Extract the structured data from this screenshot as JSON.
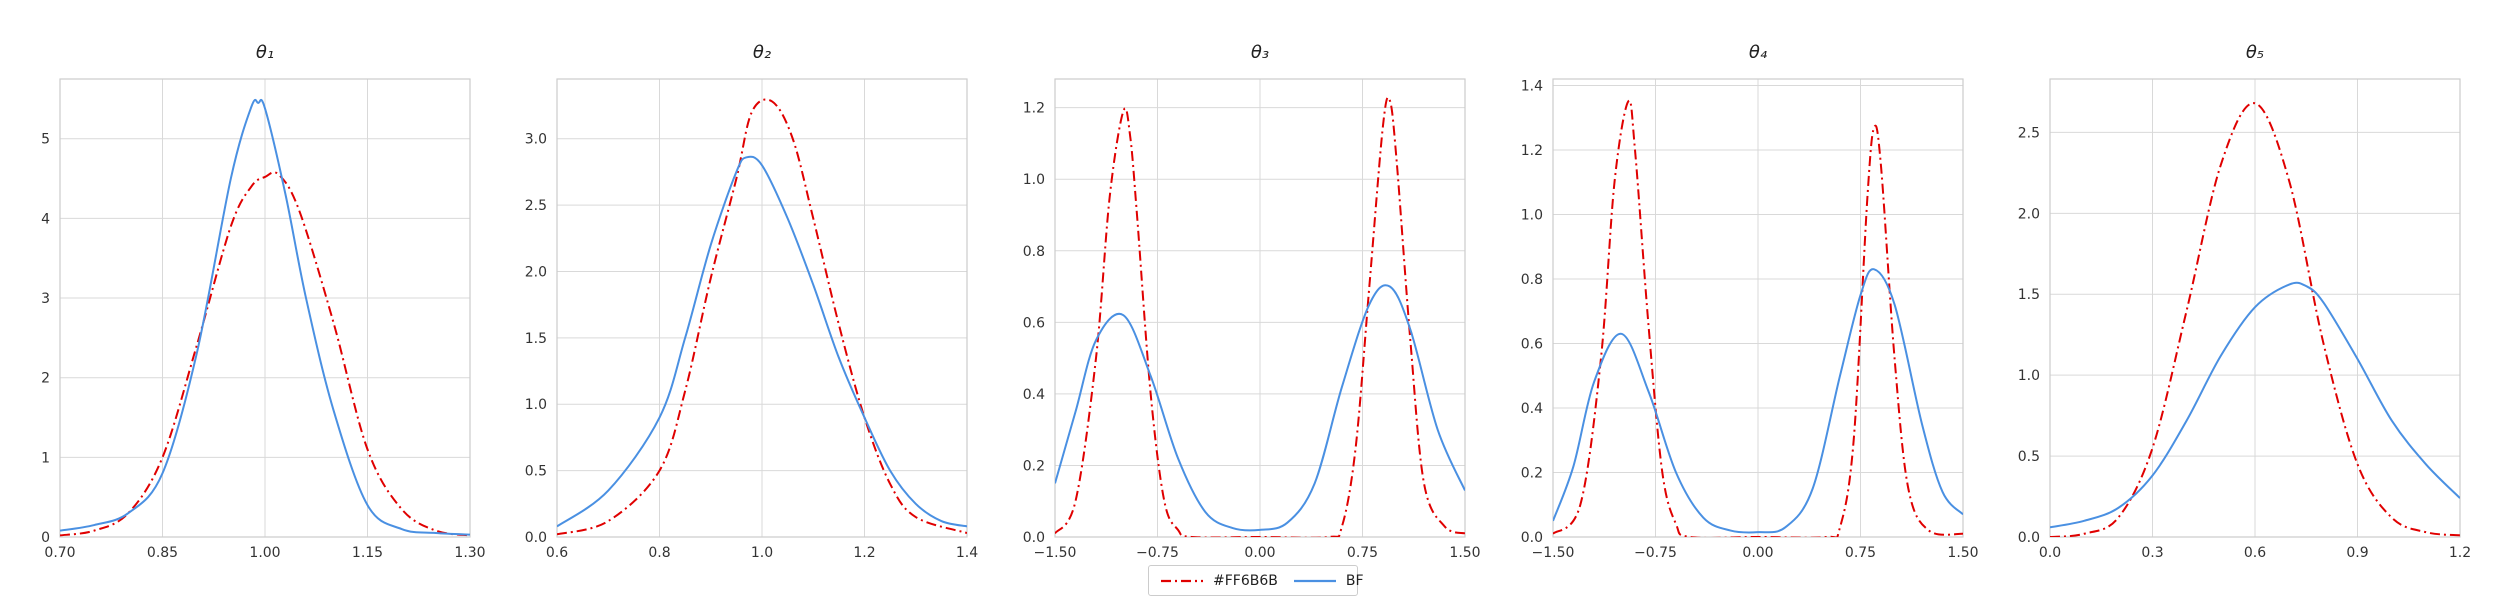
{
  "chart_data": [
    {
      "type": "line",
      "title": "θ₁",
      "xlim": [
        0.7,
        1.3
      ],
      "ylim": [
        0,
        5.75
      ],
      "xticks": [
        0.7,
        0.85,
        1.0,
        1.15,
        1.3
      ],
      "xtick_labels": [
        "0.70",
        "0.85",
        "1.00",
        "1.15",
        "1.30"
      ],
      "yticks": [
        0,
        1,
        2,
        3,
        4,
        5
      ],
      "ytick_labels": [
        "0",
        "1",
        "2",
        "3",
        "4",
        "5"
      ],
      "grid": true,
      "series": [
        {
          "name": "#FF6B6B",
          "style": "dashdot",
          "color": "#e00000",
          "x": [
            0.7,
            0.75,
            0.8,
            0.85,
            0.9,
            0.95,
            0.98,
            1.0,
            1.02,
            1.05,
            1.1,
            1.15,
            1.2,
            1.25,
            1.3
          ],
          "y": [
            0.02,
            0.08,
            0.3,
            1.0,
            2.4,
            3.9,
            4.4,
            4.52,
            4.55,
            4.1,
            2.7,
            1.1,
            0.35,
            0.08,
            0.02
          ]
        },
        {
          "name": "BF",
          "style": "solid",
          "color": "#4a90e2",
          "x": [
            0.7,
            0.75,
            0.8,
            0.85,
            0.9,
            0.95,
            0.98,
            0.99,
            1.0,
            1.03,
            1.06,
            1.1,
            1.15,
            1.2,
            1.25,
            1.3
          ],
          "y": [
            0.08,
            0.15,
            0.3,
            0.8,
            2.3,
            4.5,
            5.4,
            5.45,
            5.38,
            4.3,
            3.0,
            1.6,
            0.4,
            0.1,
            0.05,
            0.03
          ]
        }
      ]
    },
    {
      "type": "line",
      "title": "θ₂",
      "xlim": [
        0.6,
        1.4
      ],
      "ylim": [
        0,
        3.45
      ],
      "xticks": [
        0.6,
        0.8,
        1.0,
        1.2,
        1.4
      ],
      "xtick_labels": [
        "0.6",
        "0.8",
        "1.0",
        "1.2",
        "1.4"
      ],
      "yticks": [
        0,
        0.5,
        1.0,
        1.5,
        2.0,
        2.5,
        3.0
      ],
      "ytick_labels": [
        "0.0",
        "0.5",
        "1.0",
        "1.5",
        "2.0",
        "2.5",
        "3.0"
      ],
      "grid": true,
      "series": [
        {
          "name": "#FF6B6B",
          "style": "dashdot",
          "color": "#e00000",
          "x": [
            0.6,
            0.7,
            0.8,
            0.85,
            0.9,
            0.95,
            0.98,
            1.02,
            1.06,
            1.1,
            1.15,
            1.2,
            1.25,
            1.3,
            1.4
          ],
          "y": [
            0.02,
            0.12,
            0.5,
            1.1,
            1.95,
            2.7,
            3.2,
            3.28,
            3.0,
            2.4,
            1.6,
            0.9,
            0.4,
            0.15,
            0.03
          ]
        },
        {
          "name": "BF",
          "style": "solid",
          "color": "#4a90e2",
          "x": [
            0.6,
            0.7,
            0.8,
            0.85,
            0.9,
            0.95,
            0.97,
            1.0,
            1.05,
            1.1,
            1.15,
            1.2,
            1.25,
            1.3,
            1.35,
            1.4
          ],
          "y": [
            0.08,
            0.35,
            0.9,
            1.5,
            2.2,
            2.75,
            2.86,
            2.8,
            2.4,
            1.9,
            1.35,
            0.9,
            0.5,
            0.25,
            0.12,
            0.08
          ]
        }
      ]
    },
    {
      "type": "line",
      "title": "θ₃",
      "xlim": [
        -1.5,
        1.5
      ],
      "ylim": [
        0,
        1.28
      ],
      "xticks": [
        -1.5,
        -0.75,
        0.0,
        0.75,
        1.5
      ],
      "xtick_labels": [
        "−1.50",
        "−0.75",
        "0.00",
        "0.75",
        "1.50"
      ],
      "yticks": [
        0,
        0.2,
        0.4,
        0.6,
        0.8,
        1.0,
        1.2
      ],
      "ytick_labels": [
        "0.0",
        "0.2",
        "0.4",
        "0.6",
        "0.8",
        "1.0",
        "1.2"
      ],
      "grid": true,
      "series": [
        {
          "name": "#FF6B6B",
          "style": "dashdot",
          "color": "#e00000",
          "x": [
            -1.5,
            -1.35,
            -1.2,
            -1.1,
            -1.0,
            -0.95,
            -0.9,
            -0.8,
            -0.7,
            -0.6,
            -0.5,
            0.0,
            0.5,
            0.6,
            0.7,
            0.8,
            0.9,
            0.95,
            1.0,
            1.1,
            1.2,
            1.35,
            1.5
          ],
          "y": [
            0.01,
            0.1,
            0.5,
            0.95,
            1.19,
            1.12,
            0.9,
            0.4,
            0.1,
            0.02,
            0.0,
            0.0,
            0.0,
            0.03,
            0.25,
            0.7,
            1.15,
            1.22,
            1.05,
            0.55,
            0.15,
            0.03,
            0.01
          ]
        },
        {
          "name": "BF",
          "style": "solid",
          "color": "#4a90e2",
          "x": [
            -1.5,
            -1.35,
            -1.2,
            -1.0,
            -0.8,
            -0.6,
            -0.4,
            -0.2,
            0.0,
            0.2,
            0.4,
            0.6,
            0.8,
            0.95,
            1.1,
            1.3,
            1.5
          ],
          "y": [
            0.15,
            0.35,
            0.55,
            0.62,
            0.45,
            0.22,
            0.07,
            0.025,
            0.02,
            0.04,
            0.15,
            0.42,
            0.65,
            0.7,
            0.58,
            0.3,
            0.13
          ]
        }
      ]
    },
    {
      "type": "line",
      "title": "θ₄",
      "xlim": [
        -1.5,
        1.5
      ],
      "ylim": [
        0,
        1.42
      ],
      "xticks": [
        -1.5,
        -0.75,
        0.0,
        0.75,
        1.5
      ],
      "xtick_labels": [
        "−1.50",
        "−0.75",
        "0.00",
        "0.75",
        "1.50"
      ],
      "yticks": [
        0,
        0.2,
        0.4,
        0.6,
        0.8,
        1.0,
        1.2,
        1.4
      ],
      "ytick_labels": [
        "0.0",
        "0.2",
        "0.4",
        "0.6",
        "0.8",
        "1.0",
        "1.2",
        "1.4"
      ],
      "grid": true,
      "series": [
        {
          "name": "#FF6B6B",
          "style": "dashdot",
          "color": "#e00000",
          "x": [
            -1.5,
            -1.3,
            -1.15,
            -1.05,
            -0.95,
            -0.9,
            -0.8,
            -0.7,
            -0.6,
            -0.5,
            0.0,
            0.5,
            0.6,
            0.7,
            0.8,
            0.85,
            0.9,
            1.0,
            1.1,
            1.25,
            1.5
          ],
          "y": [
            0.01,
            0.1,
            0.55,
            1.1,
            1.35,
            1.2,
            0.65,
            0.2,
            0.04,
            0.0,
            0.0,
            0.0,
            0.03,
            0.3,
            1.05,
            1.27,
            1.15,
            0.55,
            0.15,
            0.02,
            0.01
          ]
        },
        {
          "name": "BF",
          "style": "solid",
          "color": "#4a90e2",
          "x": [
            -1.5,
            -1.35,
            -1.2,
            -1.0,
            -0.8,
            -0.6,
            -0.4,
            -0.2,
            0.0,
            0.2,
            0.4,
            0.6,
            0.75,
            0.85,
            1.0,
            1.2,
            1.35,
            1.5
          ],
          "y": [
            0.05,
            0.22,
            0.48,
            0.63,
            0.45,
            0.2,
            0.06,
            0.02,
            0.015,
            0.03,
            0.15,
            0.5,
            0.75,
            0.83,
            0.72,
            0.35,
            0.14,
            0.07
          ]
        }
      ]
    },
    {
      "type": "line",
      "title": "θ₅",
      "xlim": [
        0.0,
        1.2
      ],
      "ylim": [
        0,
        2.83
      ],
      "xticks": [
        0.0,
        0.3,
        0.6,
        0.9,
        1.2
      ],
      "xtick_labels": [
        "0.0",
        "0.3",
        "0.6",
        "0.9",
        "1.2"
      ],
      "yticks": [
        0,
        0.5,
        1.0,
        1.5,
        2.0,
        2.5
      ],
      "ytick_labels": [
        "0.0",
        "0.5",
        "1.0",
        "1.5",
        "2.0",
        "2.5"
      ],
      "grid": true,
      "series": [
        {
          "name": "#FF6B6B",
          "style": "dashdot",
          "color": "#e00000",
          "x": [
            0.0,
            0.1,
            0.2,
            0.3,
            0.4,
            0.5,
            0.6,
            0.7,
            0.8,
            0.9,
            1.0,
            1.1,
            1.2
          ],
          "y": [
            0.0,
            0.02,
            0.12,
            0.55,
            1.4,
            2.3,
            2.68,
            2.2,
            1.2,
            0.45,
            0.12,
            0.03,
            0.01
          ]
        },
        {
          "name": "BF",
          "style": "solid",
          "color": "#4a90e2",
          "x": [
            0.0,
            0.1,
            0.2,
            0.3,
            0.4,
            0.5,
            0.6,
            0.7,
            0.75,
            0.8,
            0.9,
            1.0,
            1.1,
            1.2
          ],
          "y": [
            0.06,
            0.1,
            0.18,
            0.38,
            0.72,
            1.12,
            1.42,
            1.56,
            1.55,
            1.45,
            1.1,
            0.72,
            0.45,
            0.24
          ]
        }
      ]
    }
  ],
  "legend": {
    "placement": "bottom-center",
    "entries": [
      {
        "label": "#FF6B6B",
        "color": "#e00000",
        "style": "dashdot"
      },
      {
        "label": "BF",
        "color": "#4a90e2",
        "style": "solid"
      }
    ]
  },
  "colors": {
    "grid": "#d9d9d9",
    "axes": "#cccccc",
    "background": "#ffffff"
  }
}
